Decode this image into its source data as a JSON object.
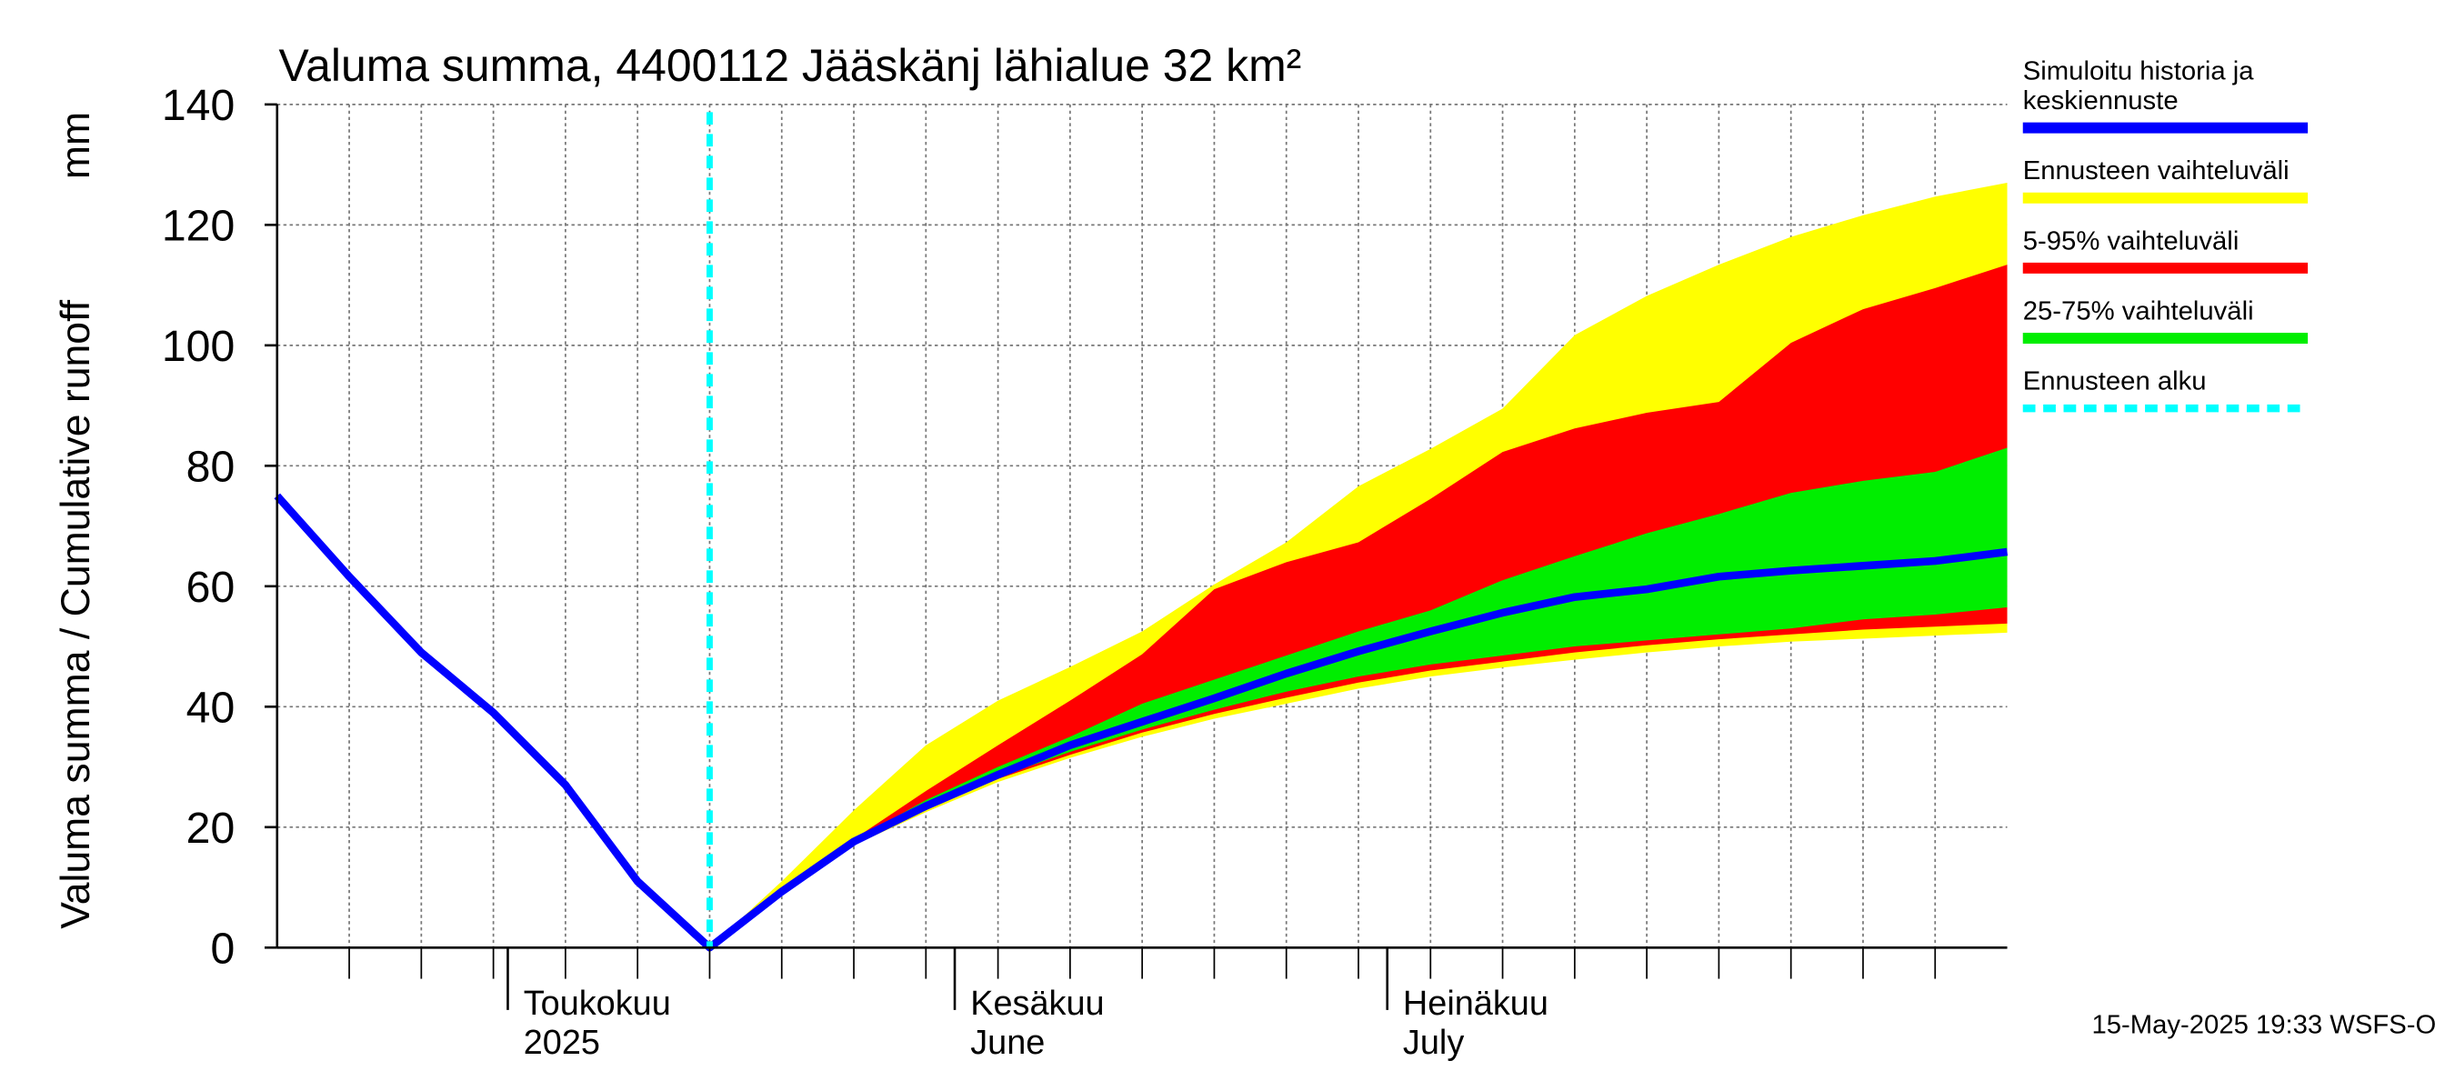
{
  "chart_data": {
    "type": "band-line",
    "title": "Valuma summa, 4400112 Jääskänj lähialue 32 km²",
    "ylabel": "Valuma summa / Cumulative runoff",
    "yunit": "mm",
    "footer": "15-May-2025 19:33 WSFS-O",
    "grid": true,
    "legend": "right",
    "x": [
      "2025-04-15",
      "2025-04-20",
      "2025-04-25",
      "2025-04-30",
      "2025-05-05",
      "2025-05-10",
      "2025-05-15",
      "2025-05-20",
      "2025-05-25",
      "2025-05-30",
      "2025-06-04",
      "2025-06-09",
      "2025-06-14",
      "2025-06-19",
      "2025-06-24",
      "2025-06-29",
      "2025-07-04",
      "2025-07-09",
      "2025-07-14",
      "2025-07-19",
      "2025-07-24",
      "2025-07-29",
      "2025-08-03",
      "2025-08-08",
      "2025-08-13"
    ],
    "xlim": [
      "2025-04-15",
      "2025-08-13"
    ],
    "xticks": [
      {
        "value": "2025-05-01",
        "label": [
          "Toukokuu",
          "2025"
        ]
      },
      {
        "value": "2025-06-01",
        "label": [
          "Kesäkuu",
          "June"
        ]
      },
      {
        "value": "2025-07-01",
        "label": [
          "Heinäkuu",
          "July"
        ]
      }
    ],
    "xgrid": [
      "2025-04-20",
      "2025-04-25",
      "2025-04-30",
      "2025-05-05",
      "2025-05-10",
      "2025-05-15",
      "2025-05-20",
      "2025-05-25",
      "2025-05-30",
      "2025-06-04",
      "2025-06-09",
      "2025-06-14",
      "2025-06-19",
      "2025-06-24",
      "2025-06-29",
      "2025-07-04",
      "2025-07-09",
      "2025-07-14",
      "2025-07-19",
      "2025-07-24",
      "2025-07-29",
      "2025-08-03",
      "2025-08-08"
    ],
    "ylim": [
      0,
      140
    ],
    "yticks": [
      0,
      20,
      40,
      60,
      80,
      100,
      120,
      140
    ],
    "series": [
      {
        "name": "Simuloitu historia ja keskiennuste",
        "color": "#0000ff",
        "values": [
          75,
          61.6,
          49,
          39,
          27,
          11,
          0,
          9.3,
          17.6,
          23.5,
          28.7,
          33.6,
          37.5,
          41.4,
          45.5,
          49.2,
          52.5,
          55.6,
          58.2,
          59.5,
          61.6,
          62.6,
          63.4,
          64.2,
          65.7
        ]
      },
      {
        "name": "Ennusteen vaihteluväli",
        "color": "#ffff00",
        "lower": [
          null,
          null,
          null,
          null,
          null,
          null,
          0,
          9,
          17,
          22.5,
          27.5,
          31.5,
          35,
          38,
          40.5,
          43,
          45,
          46.5,
          47.8,
          49,
          50,
          50.8,
          51.3,
          51.8,
          52.3
        ],
        "upper": [
          null,
          null,
          null,
          null,
          null,
          null,
          0,
          11,
          22.8,
          33.6,
          41,
          46.6,
          52.5,
          60.3,
          67.3,
          76.6,
          82.8,
          89.5,
          101.7,
          108.2,
          113.4,
          118,
          121.6,
          124.7,
          127
        ]
      },
      {
        "name": "5-95% vaihteluväli",
        "color": "#ff0000",
        "lower": [
          null,
          null,
          null,
          null,
          null,
          null,
          0,
          9.1,
          17.3,
          23,
          28,
          32,
          35.7,
          38.8,
          41.5,
          44,
          46,
          47.5,
          49,
          50.2,
          51.2,
          52,
          52.8,
          53.3,
          53.8
        ],
        "upper": [
          null,
          null,
          null,
          null,
          null,
          null,
          0,
          9.5,
          18,
          26,
          33.6,
          41,
          48.7,
          59.5,
          64,
          67.3,
          74.5,
          82.3,
          86.2,
          88.8,
          90.6,
          100.4,
          106,
          109.5,
          113.4
        ]
      },
      {
        "name": "25-75% vaihteluväli",
        "color": "#00ee00",
        "lower": [
          null,
          null,
          null,
          null,
          null,
          null,
          0,
          9.2,
          17.5,
          23.3,
          28.3,
          32.5,
          36.2,
          39.5,
          42.5,
          45,
          47,
          48.5,
          50,
          51,
          52,
          53,
          54.5,
          55.3,
          56.5
        ],
        "upper": [
          null,
          null,
          null,
          null,
          null,
          null,
          0,
          9.4,
          17.8,
          24.5,
          30,
          35,
          40.5,
          44.5,
          48.5,
          52.5,
          56,
          61,
          65,
          68.8,
          72,
          75.5,
          77.5,
          79,
          83
        ]
      },
      {
        "name": "Ennusteen alku",
        "color": "#00ffff",
        "x": "2025-05-15"
      }
    ]
  }
}
